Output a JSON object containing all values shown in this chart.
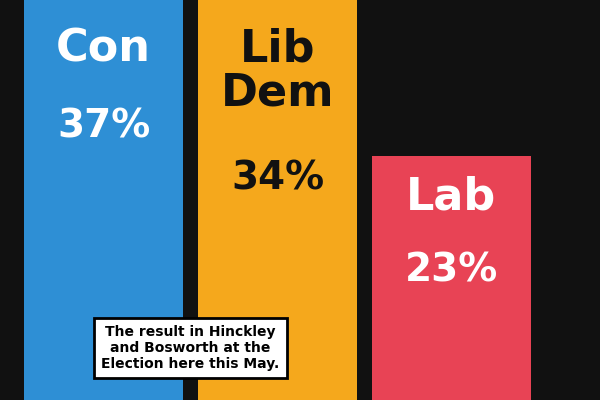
{
  "categories": [
    "Con",
    "Lib Dem",
    "Lab"
  ],
  "values": [
    37,
    34,
    23
  ],
  "colors": [
    "#2E8FD5",
    "#F5A81C",
    "#E84355"
  ],
  "label_colors": [
    "#FFFFFF",
    "#111111",
    "#FFFFFF"
  ],
  "background_color": "#111111",
  "annotation_text": "The result in Hinckley\nand Bosworth at the\nElection here this May.",
  "label_fontsize": 32,
  "pct_fontsize": 28,
  "ann_fontsize": 10
}
